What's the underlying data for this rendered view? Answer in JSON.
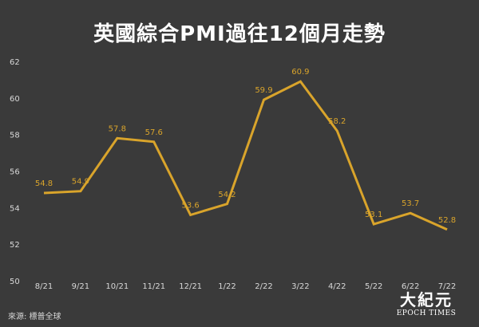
{
  "title": "英國綜合PMI過往12個月走勢",
  "source": "來源: 標普全球",
  "logo": {
    "cjk": "大紀元",
    "en": "EPOCH TIMES"
  },
  "colors": {
    "background": "#3a3a3a",
    "line": "#d9a42b",
    "text": "#d8d8d8",
    "title": "#ffffff"
  },
  "chart_data": {
    "type": "line",
    "title": "英國綜合PMI過往12個月走勢",
    "categories": [
      "8/21",
      "9/21",
      "10/21",
      "11/21",
      "12/21",
      "1/22",
      "2/22",
      "3/22",
      "4/22",
      "5/22",
      "6/22",
      "7/22"
    ],
    "series": [
      {
        "values": [
          54.8,
          54.9,
          57.8,
          57.6,
          53.6,
          54.2,
          59.9,
          60.9,
          58.2,
          53.1,
          53.7,
          52.8
        ]
      }
    ],
    "data_labels": [
      "54.8",
      "54.9",
      "57.8",
      "57.6",
      "53.6",
      "54.2",
      "59.9",
      "60.9",
      "58.2",
      "53.1",
      "53.7",
      "52.8"
    ],
    "ylim": [
      50,
      62
    ],
    "yticks": [
      50,
      52,
      54,
      56,
      58,
      60,
      62
    ],
    "xlabel": "",
    "ylabel": "",
    "grid": false,
    "legend": "none"
  }
}
